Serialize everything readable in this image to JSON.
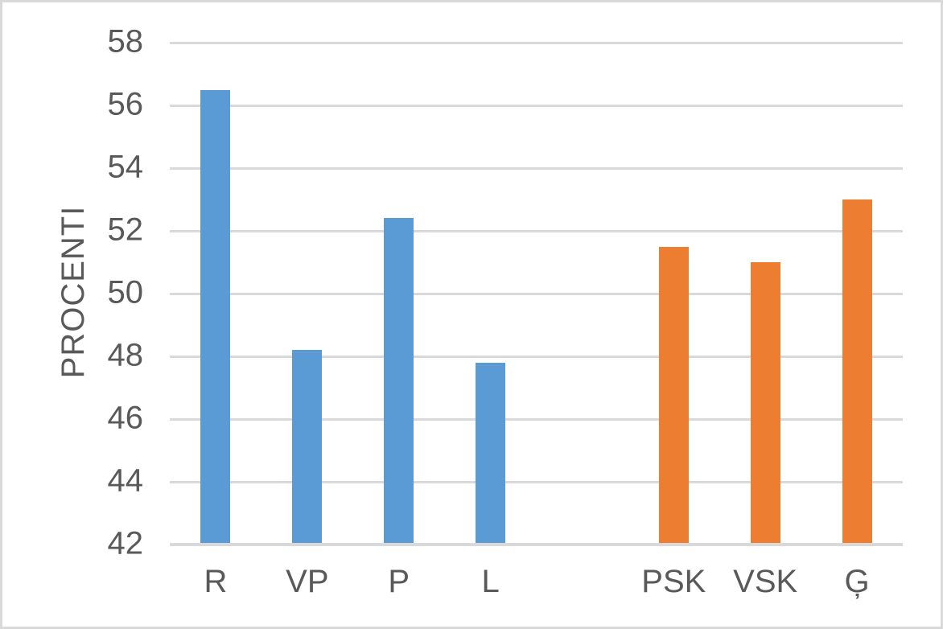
{
  "chart_data": {
    "type": "bar",
    "title": "",
    "ylabel": "PROCENTI",
    "xlabel": "",
    "ylim": [
      42,
      58
    ],
    "ytick_step": 2,
    "yticks": [
      58,
      56,
      54,
      52,
      50,
      48,
      46,
      44,
      42
    ],
    "categories": [
      "R",
      "VP",
      "P",
      "L",
      "",
      "PSK",
      "VSK",
      "Ģ"
    ],
    "values": [
      56.5,
      48.2,
      52.4,
      47.8,
      null,
      51.5,
      51.0,
      53.0
    ],
    "bar_color_keys": [
      "blue",
      "blue",
      "blue",
      "blue",
      null,
      "orange",
      "orange",
      "orange"
    ],
    "palette": {
      "blue": "#5B9BD5",
      "orange": "#ED7D31"
    },
    "grid": "horizontal",
    "legend": "none",
    "gridline_color": "#D9D9D9",
    "axis_line_color": "#D9D9D9",
    "text_color": "#595959",
    "background_color": "#FFFFFF",
    "border_color": "#D9D9D9"
  }
}
